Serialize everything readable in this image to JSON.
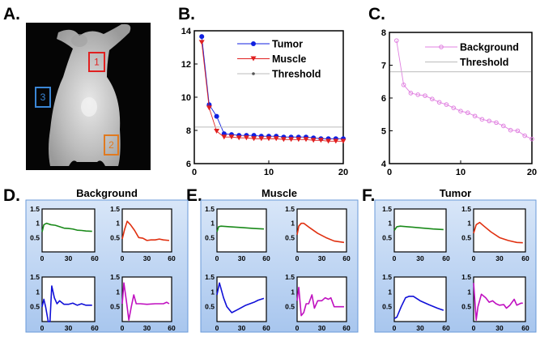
{
  "panel_labels": {
    "a": "A.",
    "b": "B.",
    "c": "C.",
    "d": "D.",
    "e": "E.",
    "f": "F."
  },
  "image": {
    "rois": [
      {
        "label": "1",
        "color": "#e02020"
      },
      {
        "label": "2",
        "color": "#e07a20"
      },
      {
        "label": "3",
        "color": "#3a86d6"
      }
    ]
  },
  "colors": {
    "tumor": "#1020e0",
    "muscle": "#e02020",
    "threshold": "#999999",
    "background": "#e080e0",
    "green": "#1a8a1a",
    "red": "#e03010",
    "blue": "#1010d8",
    "magenta": "#c010c0",
    "panel_border": "#6a9ad8"
  },
  "chart_data": [
    {
      "id": "B",
      "type": "line",
      "x": [
        1,
        2,
        3,
        4,
        5,
        6,
        7,
        8,
        9,
        10,
        11,
        12,
        13,
        14,
        15,
        16,
        17,
        18,
        19,
        20
      ],
      "series": [
        {
          "name": "Tumor",
          "marker": "circle",
          "color": "#1020e0",
          "values": [
            13.65,
            9.55,
            8.85,
            7.8,
            7.75,
            7.7,
            7.7,
            7.7,
            7.65,
            7.65,
            7.65,
            7.6,
            7.6,
            7.6,
            7.6,
            7.55,
            7.5,
            7.5,
            7.5,
            7.5
          ]
        },
        {
          "name": "Muscle",
          "marker": "triangle-down",
          "color": "#e02020",
          "values": [
            13.3,
            9.35,
            7.95,
            7.6,
            7.6,
            7.55,
            7.55,
            7.5,
            7.5,
            7.5,
            7.5,
            7.45,
            7.45,
            7.45,
            7.45,
            7.4,
            7.4,
            7.35,
            7.35,
            7.35
          ]
        },
        {
          "name": "Threshold",
          "marker": "dot",
          "color": "#999999",
          "constant": 8.2
        }
      ],
      "xlim": [
        0,
        20
      ],
      "ylim": [
        6,
        14
      ],
      "xticks": [
        "0",
        "10",
        "20"
      ],
      "yticks": [
        "6",
        "8",
        "10",
        "12",
        "14"
      ],
      "legend": "top-right"
    },
    {
      "id": "C",
      "type": "line",
      "x": [
        1,
        2,
        3,
        4,
        5,
        6,
        7,
        8,
        9,
        10,
        11,
        12,
        13,
        14,
        15,
        16,
        17,
        18,
        19,
        20
      ],
      "series": [
        {
          "name": "Background",
          "marker": "open-circle",
          "color": "#e080e0",
          "values": [
            7.75,
            6.4,
            6.15,
            6.1,
            6.07,
            5.97,
            5.87,
            5.8,
            5.7,
            5.6,
            5.55,
            5.45,
            5.35,
            5.3,
            5.25,
            5.15,
            5.02,
            5.0,
            4.85,
            4.75
          ]
        },
        {
          "name": "Threshold",
          "marker": "none",
          "color": "#999999",
          "constant": 6.8
        }
      ],
      "xlim": [
        0,
        20
      ],
      "ylim": [
        4,
        8
      ],
      "xticks": [
        "0",
        "10",
        "20"
      ],
      "yticks": [
        "4",
        "5",
        "6",
        "7",
        "8"
      ],
      "legend": "top-right"
    },
    {
      "id": "D",
      "type": "line",
      "title": "Background",
      "xlim": [
        0,
        60
      ],
      "ylim": [
        0,
        1.5
      ],
      "xticks": [
        "0",
        "30",
        "60"
      ],
      "yticks": [
        "0.5",
        "1",
        "1.5"
      ],
      "subplots": [
        {
          "color": "#1a8a1a",
          "points": [
            [
              0,
              0.7
            ],
            [
              2,
              0.95
            ],
            [
              5,
              1.0
            ],
            [
              10,
              0.95
            ],
            [
              15,
              0.93
            ],
            [
              20,
              0.88
            ],
            [
              25,
              0.83
            ],
            [
              30,
              0.82
            ],
            [
              35,
              0.8
            ],
            [
              40,
              0.76
            ],
            [
              45,
              0.75
            ],
            [
              50,
              0.73
            ],
            [
              57,
              0.72
            ]
          ]
        },
        {
          "color": "#e03010",
          "points": [
            [
              0,
              0.45
            ],
            [
              3,
              0.8
            ],
            [
              6,
              1.07
            ],
            [
              10,
              0.95
            ],
            [
              15,
              0.75
            ],
            [
              20,
              0.5
            ],
            [
              25,
              0.48
            ],
            [
              30,
              0.4
            ],
            [
              35,
              0.42
            ],
            [
              40,
              0.42
            ],
            [
              45,
              0.45
            ],
            [
              50,
              0.42
            ],
            [
              57,
              0.4
            ]
          ]
        },
        {
          "color": "#1010d8",
          "points": [
            [
              0,
              0.5
            ],
            [
              2,
              0.75
            ],
            [
              4,
              0.5
            ],
            [
              7,
              0
            ],
            [
              9,
              0
            ],
            [
              11,
              1.2
            ],
            [
              14,
              0.8
            ],
            [
              17,
              0.6
            ],
            [
              20,
              0.7
            ],
            [
              25,
              0.58
            ],
            [
              30,
              0.58
            ],
            [
              35,
              0.62
            ],
            [
              40,
              0.55
            ],
            [
              45,
              0.6
            ],
            [
              50,
              0.55
            ],
            [
              57,
              0.55
            ]
          ]
        },
        {
          "color": "#c010c0",
          "points": [
            [
              0,
              0.6
            ],
            [
              2,
              1.3
            ],
            [
              5,
              0.7
            ],
            [
              8,
              0.05
            ],
            [
              11,
              0.5
            ],
            [
              14,
              0.9
            ],
            [
              17,
              0.6
            ],
            [
              22,
              0.6
            ],
            [
              30,
              0.58
            ],
            [
              40,
              0.6
            ],
            [
              50,
              0.6
            ],
            [
              54,
              0.65
            ],
            [
              57,
              0.6
            ]
          ]
        }
      ]
    },
    {
      "id": "E",
      "type": "line",
      "title": "Muscle",
      "xlim": [
        0,
        60
      ],
      "ylim": [
        0,
        1.5
      ],
      "xticks": [
        "0",
        "30",
        "60"
      ],
      "yticks": [
        "0.5",
        "1",
        "1.5"
      ],
      "subplots": [
        {
          "color": "#1a8a1a",
          "points": [
            [
              0,
              0.7
            ],
            [
              2,
              0.88
            ],
            [
              5,
              0.9
            ],
            [
              15,
              0.88
            ],
            [
              30,
              0.85
            ],
            [
              45,
              0.82
            ],
            [
              57,
              0.8
            ]
          ]
        },
        {
          "color": "#e03010",
          "points": [
            [
              0,
              0.6
            ],
            [
              2,
              0.9
            ],
            [
              5,
              1.0
            ],
            [
              8,
              1.0
            ],
            [
              15,
              0.85
            ],
            [
              25,
              0.65
            ],
            [
              35,
              0.5
            ],
            [
              45,
              0.38
            ],
            [
              57,
              0.33
            ]
          ]
        },
        {
          "color": "#1010d8",
          "points": [
            [
              0,
              0.9
            ],
            [
              3,
              1.3
            ],
            [
              8,
              0.8
            ],
            [
              12,
              0.5
            ],
            [
              18,
              0.3
            ],
            [
              25,
              0.4
            ],
            [
              35,
              0.55
            ],
            [
              45,
              0.65
            ],
            [
              50,
              0.72
            ],
            [
              57,
              0.78
            ]
          ]
        },
        {
          "color": "#c010c0",
          "points": [
            [
              0,
              0.7
            ],
            [
              2,
              1.15
            ],
            [
              5,
              0.2
            ],
            [
              8,
              0.3
            ],
            [
              11,
              0.6
            ],
            [
              14,
              0.6
            ],
            [
              18,
              0.9
            ],
            [
              21,
              0.45
            ],
            [
              25,
              0.7
            ],
            [
              30,
              0.7
            ],
            [
              34,
              0.8
            ],
            [
              38,
              0.75
            ],
            [
              41,
              0.8
            ],
            [
              45,
              0.5
            ],
            [
              50,
              0.5
            ],
            [
              57,
              0.5
            ]
          ]
        }
      ]
    },
    {
      "id": "F",
      "type": "line",
      "title": "Tumor",
      "xlim": [
        0,
        60
      ],
      "ylim": [
        0,
        1.5
      ],
      "xticks": [
        "0",
        "30",
        "60"
      ],
      "yticks": [
        "0.5",
        "1",
        "1.5"
      ],
      "subplots": [
        {
          "color": "#1a8a1a",
          "points": [
            [
              0,
              0.75
            ],
            [
              3,
              0.88
            ],
            [
              7,
              0.9
            ],
            [
              15,
              0.88
            ],
            [
              30,
              0.84
            ],
            [
              45,
              0.8
            ],
            [
              57,
              0.78
            ]
          ]
        },
        {
          "color": "#e03010",
          "points": [
            [
              0,
              0.65
            ],
            [
              3,
              0.95
            ],
            [
              7,
              1.03
            ],
            [
              12,
              0.9
            ],
            [
              20,
              0.7
            ],
            [
              30,
              0.5
            ],
            [
              40,
              0.4
            ],
            [
              50,
              0.33
            ],
            [
              57,
              0.32
            ]
          ]
        },
        {
          "color": "#1010d8",
          "points": [
            [
              0,
              0.1
            ],
            [
              3,
              0.15
            ],
            [
              8,
              0.5
            ],
            [
              13,
              0.8
            ],
            [
              17,
              0.85
            ],
            [
              22,
              0.85
            ],
            [
              30,
              0.7
            ],
            [
              40,
              0.57
            ],
            [
              50,
              0.45
            ],
            [
              57,
              0.38
            ]
          ]
        },
        {
          "color": "#c010c0",
          "points": [
            [
              0,
              1.3
            ],
            [
              3,
              0.05
            ],
            [
              5,
              0.5
            ],
            [
              9,
              0.92
            ],
            [
              14,
              0.8
            ],
            [
              18,
              0.65
            ],
            [
              22,
              0.7
            ],
            [
              26,
              0.6
            ],
            [
              30,
              0.55
            ],
            [
              35,
              0.57
            ],
            [
              38,
              0.45
            ],
            [
              42,
              0.55
            ],
            [
              47,
              0.75
            ],
            [
              50,
              0.55
            ],
            [
              55,
              0.62
            ],
            [
              57,
              0.62
            ]
          ]
        }
      ]
    }
  ]
}
